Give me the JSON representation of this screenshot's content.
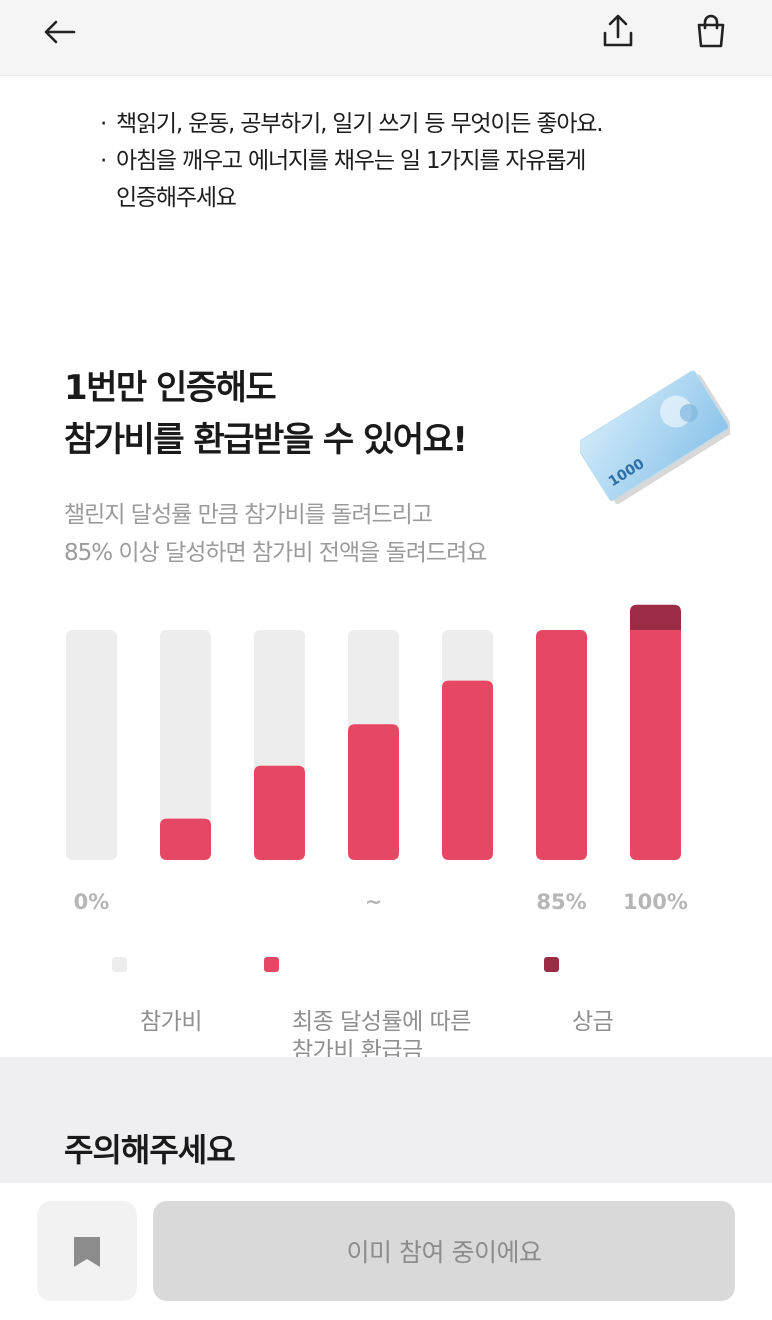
{
  "rules": [
    "책읽기, 운동, 공부하기, 일기 쓰기 등 무엇이든 좋아요.",
    "아침을 깨우고 에너지를 채우는 일 1가지를 자유롭게\n인증해주세요"
  ],
  "headline": "1번만 인증해도\n참가비를 환급받을 수 있어요!",
  "illustration_text": "1000",
  "subtitle": "챌린지 달성률 만큼 참가비를 돌려드리고\n85% 이상 달성하면 참가비 전액을 돌려드려요",
  "chart_data": {
    "type": "bar",
    "x_tick_labels": [
      "0%",
      "",
      "",
      "~",
      "",
      "85%",
      "100%"
    ],
    "series": [
      {
        "name": "참가비",
        "values": [
          1,
          1,
          1,
          1,
          1,
          1,
          1
        ]
      },
      {
        "name": "최종 달성률에 따른\n참가비 환급금",
        "values": [
          0,
          0.18,
          0.41,
          0.59,
          0.78,
          1,
          1
        ]
      },
      {
        "name": "상금",
        "values": [
          0,
          0,
          0,
          0,
          0,
          0,
          0.11
        ]
      }
    ],
    "colors": {
      "participation_fee": "#ededed",
      "refund": "#e64863",
      "prize": "#9a2d45"
    }
  },
  "legend": {
    "fee": "참가비",
    "refund": "최종 달성률에 따른\n참가비 환급금",
    "prize": "상금"
  },
  "notice": {
    "title": "주의해주세요"
  },
  "bottom_bar": {
    "join_label": "이미 참여 중이에요"
  },
  "icons": {
    "back": "back-arrow-icon",
    "share": "share-icon",
    "cart": "shopping-bag-icon",
    "bookmark": "bookmark-icon"
  }
}
